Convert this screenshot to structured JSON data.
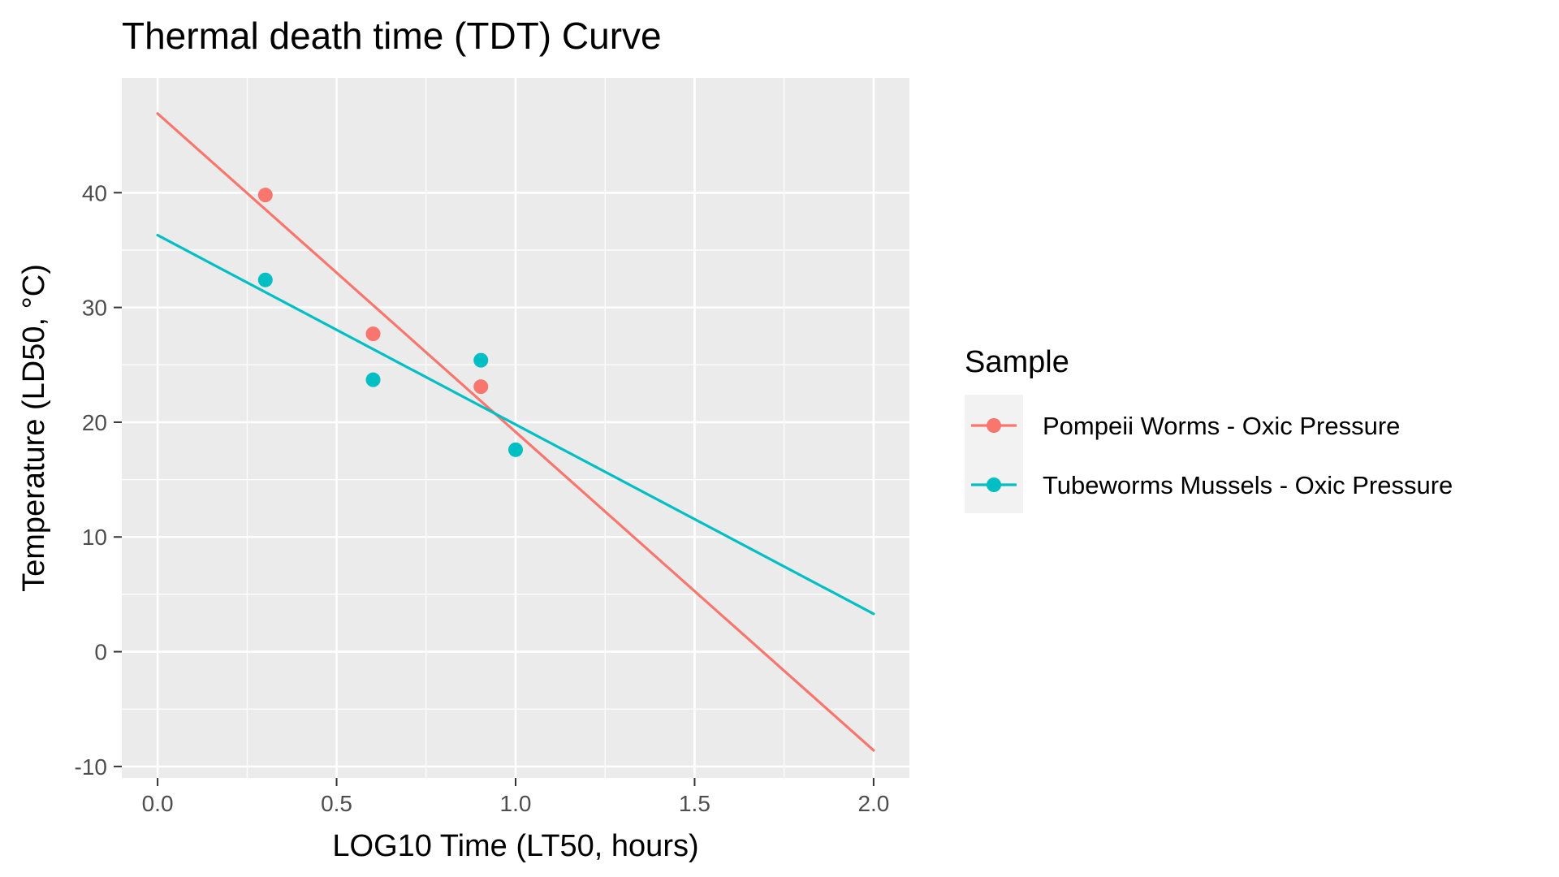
{
  "chart_data": {
    "type": "scatter",
    "title": "Thermal death time (TDT) Curve",
    "xlabel": "LOG10 Time (LT50, hours)",
    "ylabel": "Temperature (LD50, °C)",
    "xlim": [
      -0.1,
      2.1
    ],
    "ylim": [
      -11,
      50
    ],
    "x_ticks": [
      0.0,
      0.5,
      1.0,
      1.5,
      2.0
    ],
    "x_tick_labels": [
      "0.0",
      "0.5",
      "1.0",
      "1.5",
      "2.0"
    ],
    "y_ticks": [
      -10,
      0,
      10,
      20,
      30,
      40
    ],
    "y_tick_labels": [
      "-10",
      "0",
      "10",
      "20",
      "30",
      "40"
    ],
    "grid": true,
    "background": "#ebebeb",
    "legend": {
      "title": "Sample",
      "position": "right"
    },
    "series": [
      {
        "name": "Pompeii Worms - Oxic Pressure",
        "color": "#F8766D",
        "points": [
          {
            "x": 0.301,
            "y": 39.8
          },
          {
            "x": 0.602,
            "y": 27.7
          },
          {
            "x": 0.903,
            "y": 23.1
          }
        ],
        "fit_line": [
          {
            "x": 0.0,
            "y": 46.9
          },
          {
            "x": 2.0,
            "y": -8.6
          }
        ]
      },
      {
        "name": "Tubeworms Mussels - Oxic Pressure",
        "color": "#00BFC4",
        "points": [
          {
            "x": 0.301,
            "y": 32.4
          },
          {
            "x": 0.602,
            "y": 23.7
          },
          {
            "x": 0.903,
            "y": 25.4
          },
          {
            "x": 1.0,
            "y": 17.6
          }
        ],
        "fit_line": [
          {
            "x": 0.0,
            "y": 36.3
          },
          {
            "x": 2.0,
            "y": 3.3
          }
        ]
      }
    ]
  }
}
